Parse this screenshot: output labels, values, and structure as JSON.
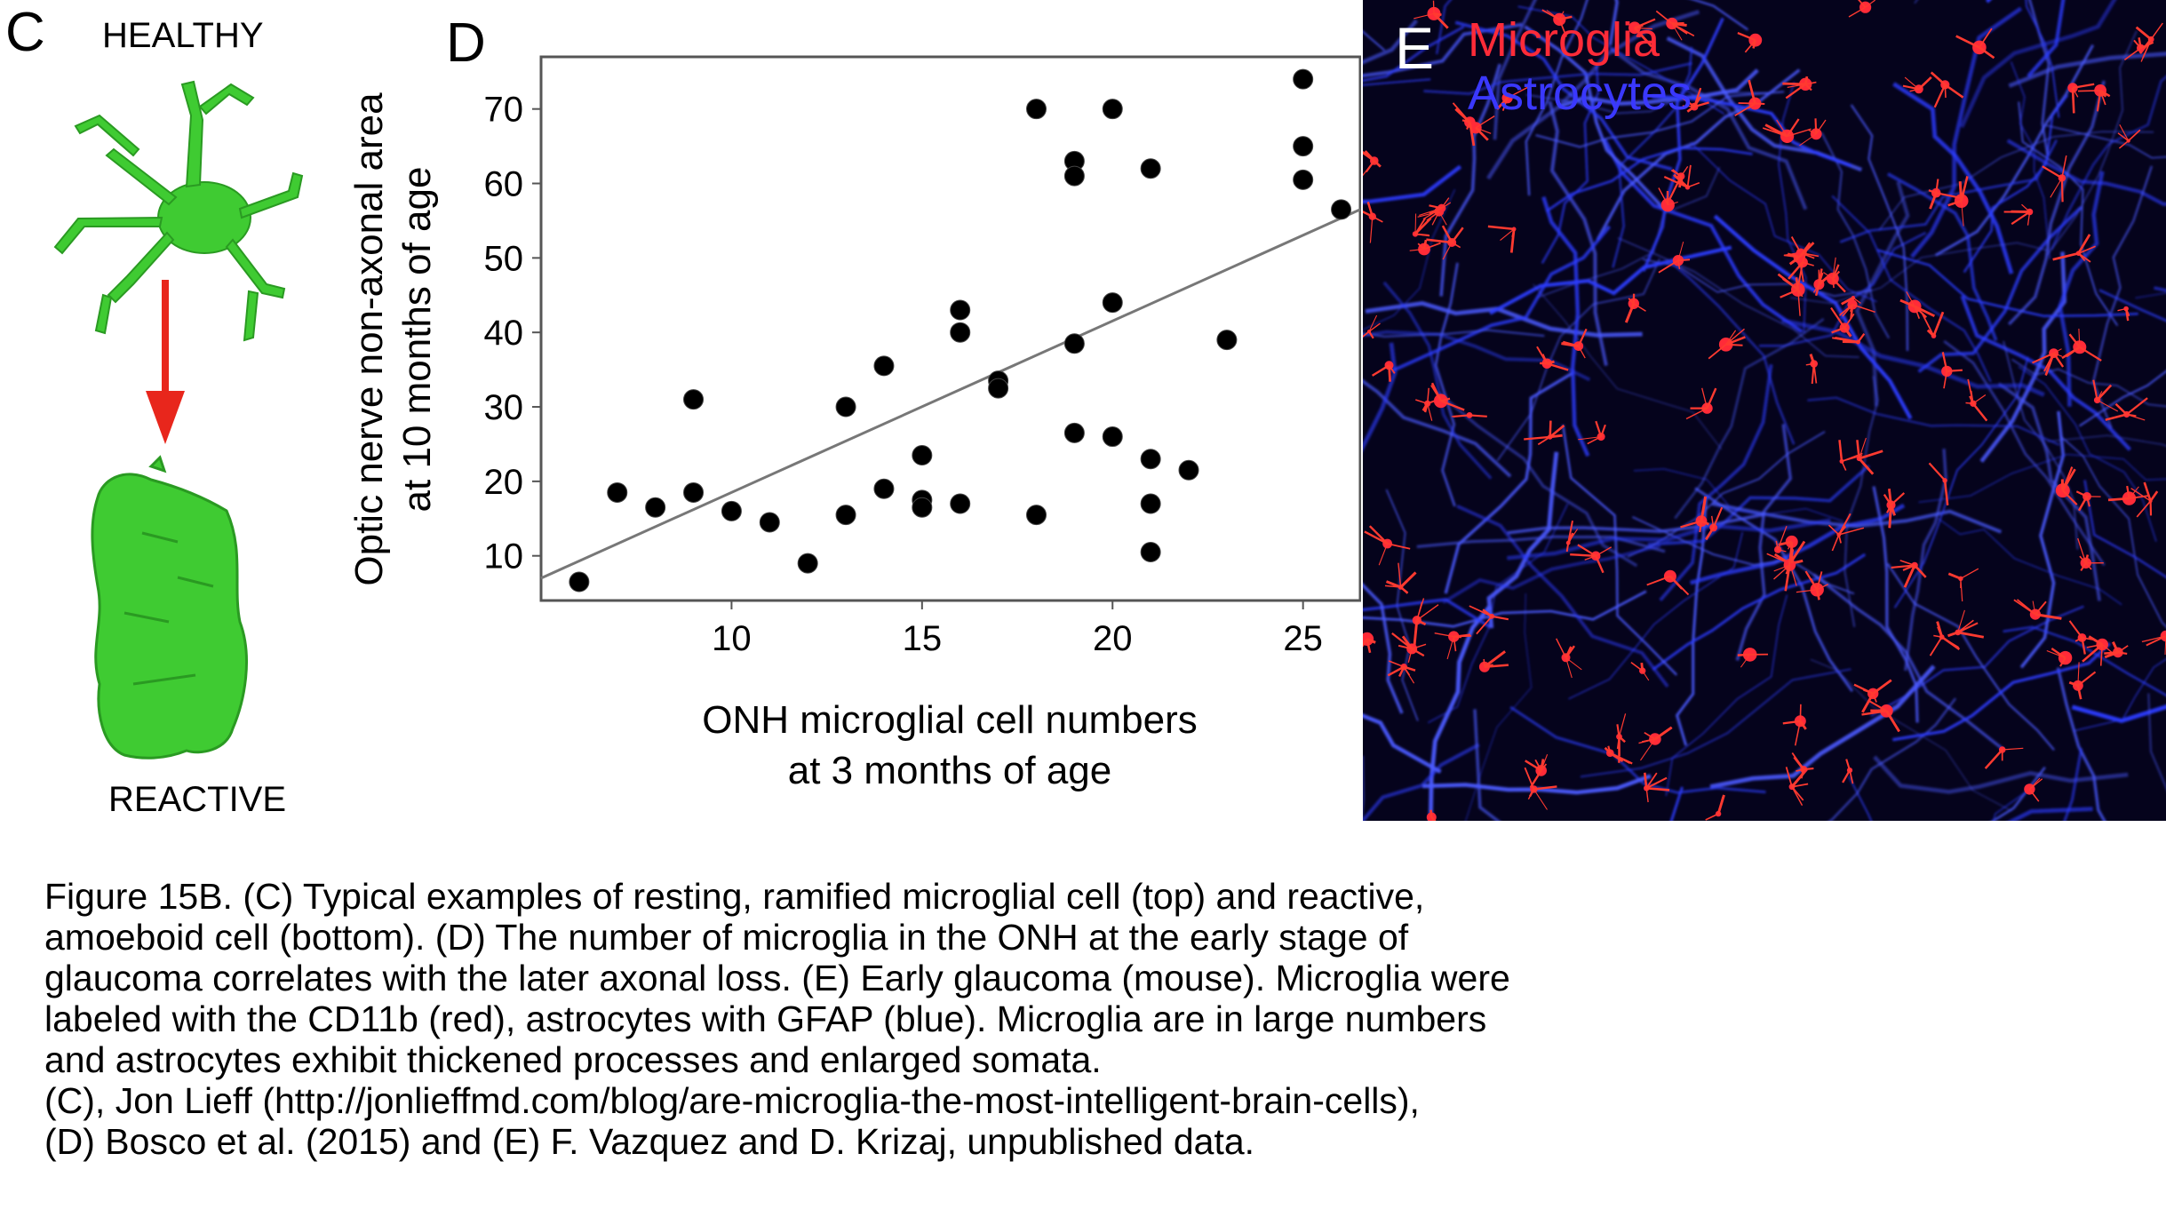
{
  "panel_c": {
    "letter": "C",
    "healthy_label": "HEALTHY",
    "reactive_label": "REACTIVE",
    "colors": {
      "cell": "#3fcb32",
      "arrow": "#e8261c"
    }
  },
  "panel_d": {
    "letter": "D",
    "chart_data": {
      "type": "scatter",
      "title": "",
      "xlabel": [
        "ONH microglial cell numbers",
        "at 3 months of age"
      ],
      "ylabel": [
        "Optic nerve non-axonal area",
        "at  10 months of age"
      ],
      "xlim": [
        5,
        26.5
      ],
      "ylim": [
        4,
        77
      ],
      "xticks": [
        10,
        15,
        20,
        25
      ],
      "yticks": [
        10,
        20,
        30,
        40,
        50,
        60,
        70
      ],
      "grid": false,
      "points": [
        [
          6,
          6.5
        ],
        [
          7,
          18.5
        ],
        [
          8,
          16.5
        ],
        [
          9,
          31
        ],
        [
          9,
          18.5
        ],
        [
          10,
          16
        ],
        [
          11,
          14.5
        ],
        [
          12,
          9
        ],
        [
          13,
          30
        ],
        [
          13,
          15.5
        ],
        [
          14,
          35.5
        ],
        [
          14,
          19
        ],
        [
          15,
          23.5
        ],
        [
          15,
          17.5
        ],
        [
          15,
          16.5
        ],
        [
          16,
          43
        ],
        [
          16,
          40
        ],
        [
          16,
          17
        ],
        [
          17,
          33.5
        ],
        [
          17,
          32.5
        ],
        [
          18,
          70
        ],
        [
          18,
          15.5
        ],
        [
          19,
          63
        ],
        [
          19,
          61
        ],
        [
          19,
          38.5
        ],
        [
          19,
          26.5
        ],
        [
          20,
          70
        ],
        [
          20,
          44
        ],
        [
          20,
          26
        ],
        [
          21,
          62
        ],
        [
          21,
          23
        ],
        [
          21,
          17
        ],
        [
          21,
          10.5
        ],
        [
          22,
          21.5
        ],
        [
          23,
          39
        ],
        [
          25,
          74
        ],
        [
          25,
          65
        ],
        [
          25,
          60.5
        ],
        [
          26,
          56.5
        ]
      ],
      "fit_line": {
        "x": [
          5,
          26.5
        ],
        "y": [
          7,
          56.5
        ]
      }
    }
  },
  "panel_e": {
    "letter": "E",
    "legend": [
      {
        "label": "Microglia",
        "color": "#ff2b38"
      },
      {
        "label": "Astrocytes",
        "color": "#3a38ff"
      }
    ]
  },
  "caption": [
    "Figure 15B. (C) Typical examples of resting, ramified microglial cell (top) and reactive,",
    "amoeboid cell (bottom). (D) The number of microglia in the ONH at the early stage of",
    "glaucoma correlates with the later axonal loss. (E) Early glaucoma (mouse). Microglia were",
    "labeled with the CD11b (red), astrocytes with GFAP (blue). Microglia are in large numbers",
    "and astrocytes  exhibit  thickened processes and enlarged somata.",
    "(C), Jon Lieff (http://jonlieffmd.com/blog/are-microglia-the-most-intelligent-brain-cells),",
    "(D) Bosco et al. (2015) and (E) F. Vazquez and D. Krizaj, unpublished data."
  ]
}
